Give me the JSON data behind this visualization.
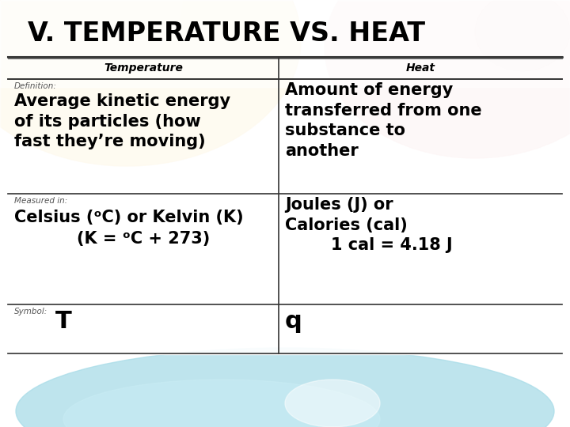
{
  "title": "V. TEMPERATURE VS. HEAT",
  "col1_header": "Temperature",
  "col2_header": "Heat",
  "row1_label": "Definition:",
  "row1_col1_main": "Average kinetic energy\nof its particles (how\nfast they’re moving)",
  "row1_col2_main": "Amount of energy\ntransferred from one\nsubstance to\nanother",
  "row2_label": "Measured in:",
  "row2_col1_main_line1": "Celsius (ᵒC) or Kelvin (K)",
  "row2_col1_main_line2": "(K = ᵒC + 273)",
  "row2_col2_main": "Joules (J) or\nCalories (cal)\n        1 cal = 4.18 J",
  "row3_label": "Symbol:",
  "row3_col1_main": "T",
  "row3_col2_main": "q",
  "bg_color": "#ffffff",
  "title_color": "#000000",
  "header_color": "#000000",
  "cell_text_color": "#000000",
  "small_label_color": "#555555",
  "line_color": "#333333"
}
